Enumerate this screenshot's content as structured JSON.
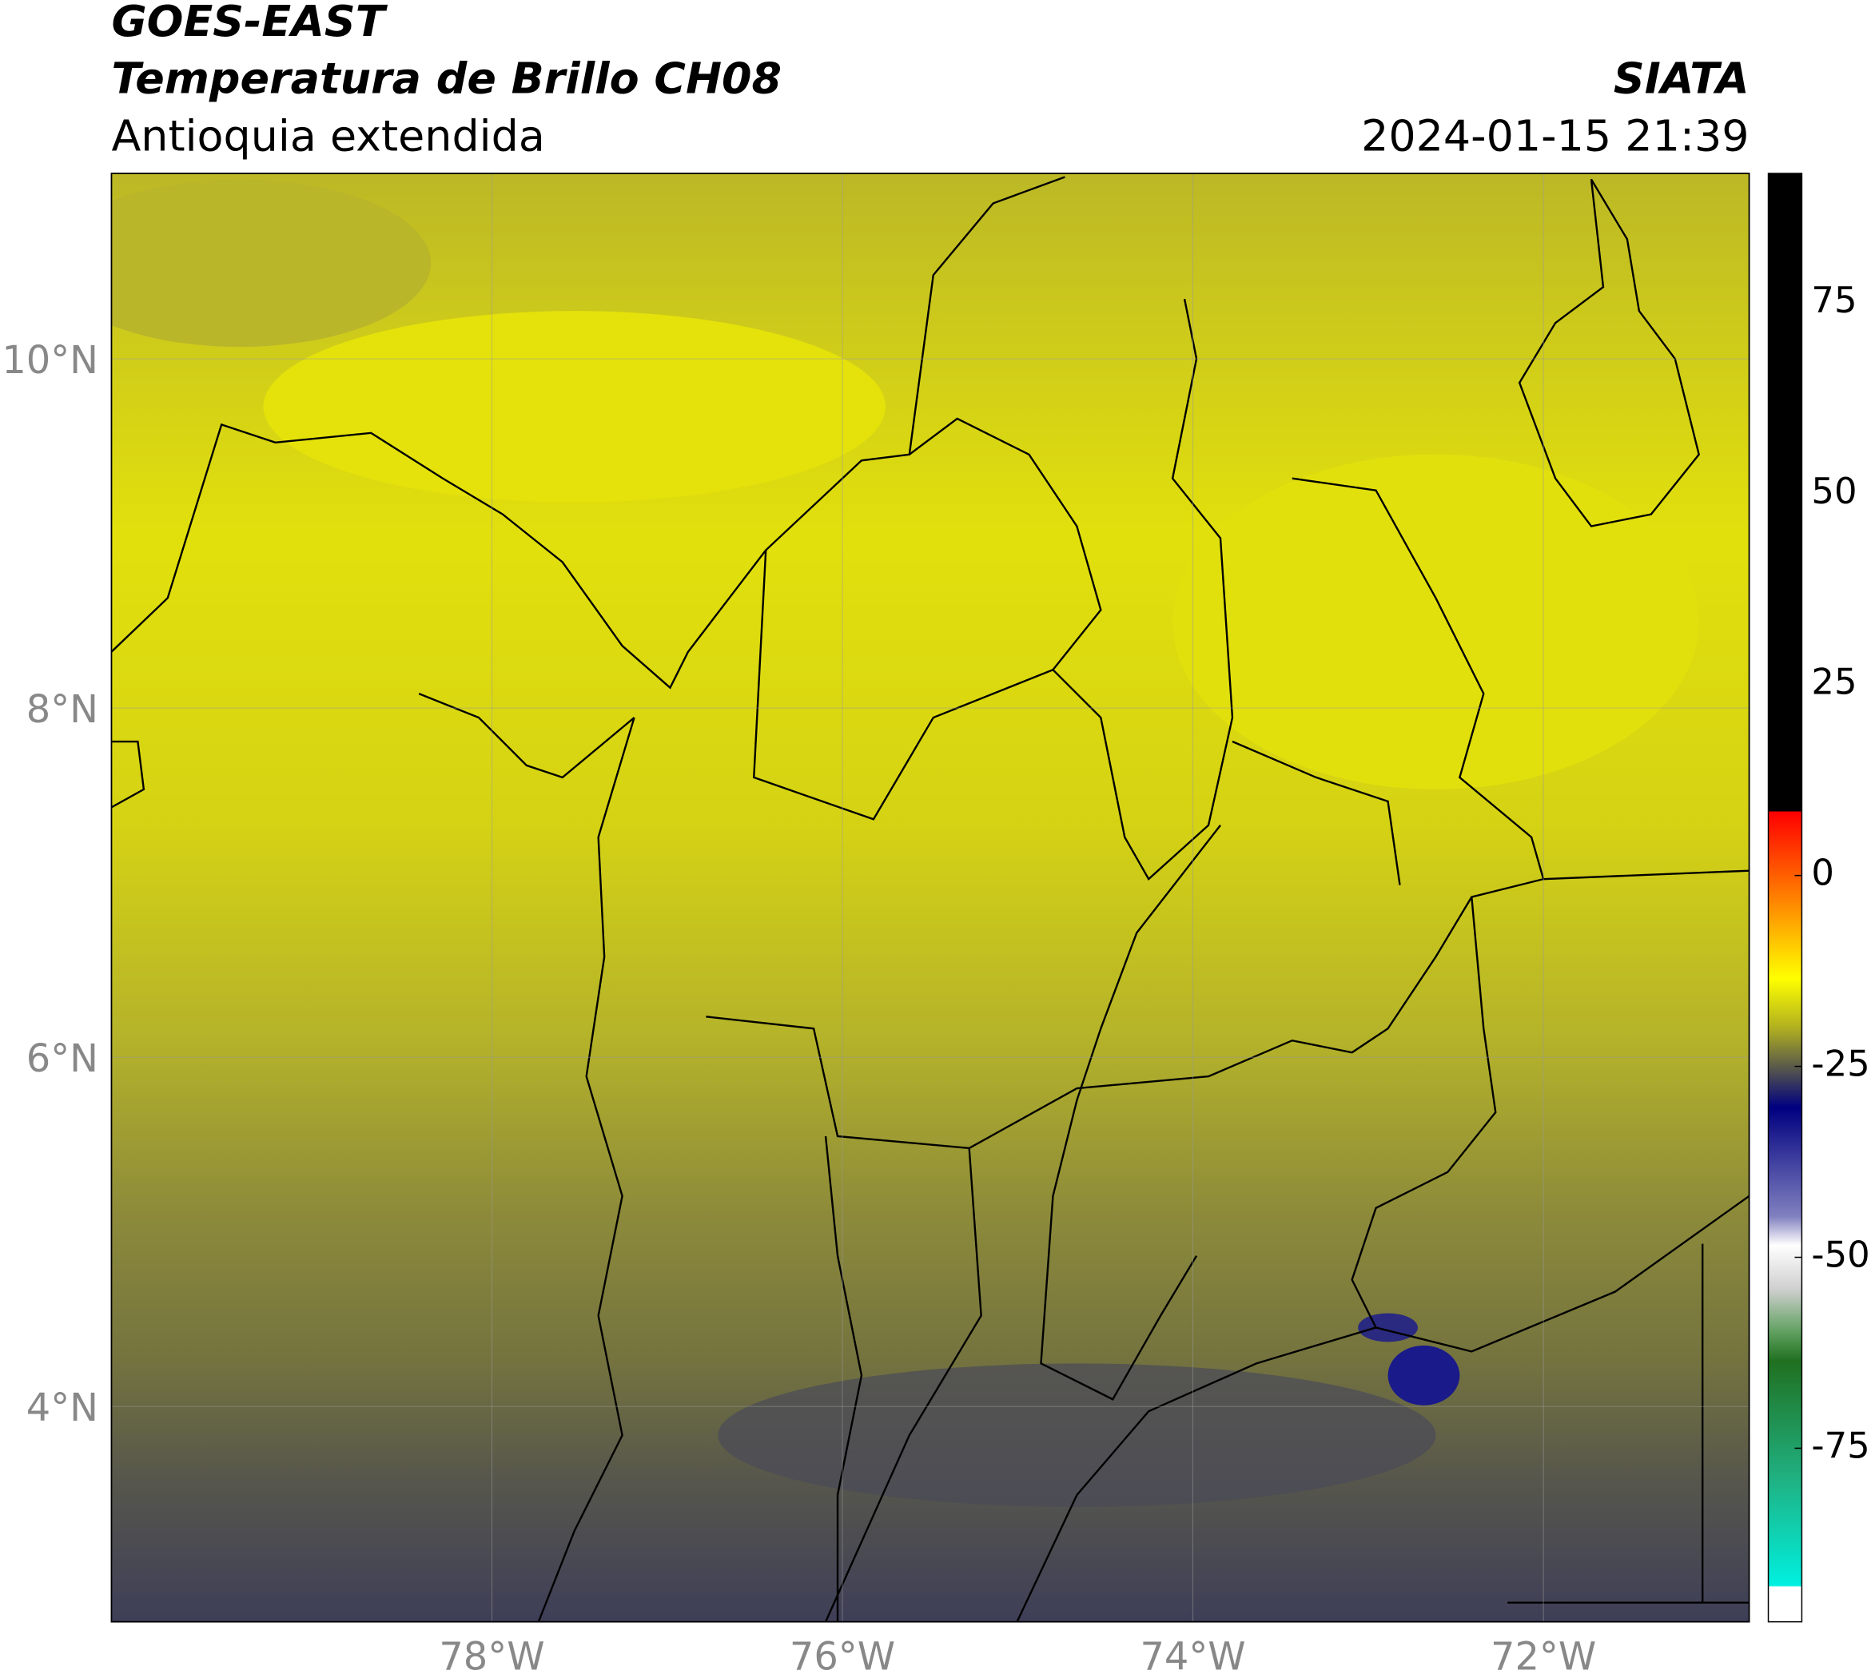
{
  "header": {
    "title": "GOES-EAST",
    "subtitle": "Temperatura de Brillo CH08",
    "region": "Antioquia extendida",
    "source": "SIATA",
    "datetime": "2024-01-15 21:39"
  },
  "map": {
    "xticks": [
      {
        "value": -78,
        "label": "78°W"
      },
      {
        "value": -76,
        "label": "76°W"
      },
      {
        "value": -74,
        "label": "74°W"
      },
      {
        "value": -72,
        "label": "72°W"
      }
    ],
    "yticks": [
      {
        "value": 10,
        "label": "10°N"
      },
      {
        "value": 8,
        "label": "8°N"
      },
      {
        "value": 6,
        "label": "6°N"
      },
      {
        "value": 4,
        "label": "4°N"
      }
    ]
  },
  "colorbar": {
    "ticks": [
      75,
      50,
      25,
      0,
      -25,
      -50,
      -75
    ]
  }
}
